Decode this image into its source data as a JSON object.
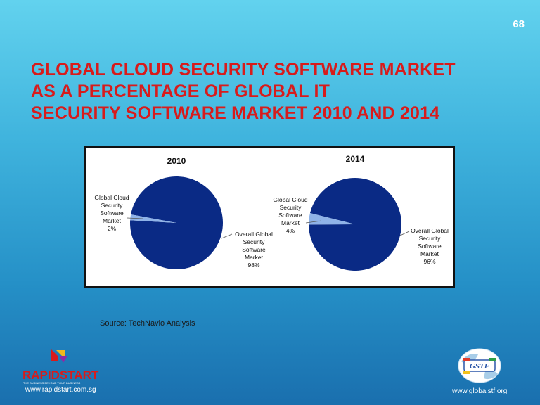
{
  "slide_number": "68",
  "title_lines": [
    "GLOBAL CLOUD SECURITY SOFTWARE MARKET",
    "AS A PERCENTAGE OF GLOBAL IT",
    "SECURITY SOFTWARE MARKET 2010 AND 2014"
  ],
  "source": "Source: TechNavio Analysis",
  "chart_data": [
    {
      "type": "pie",
      "title": "2010",
      "slices": [
        {
          "label_lines": [
            "Global Cloud",
            "Security",
            "Software",
            "Market",
            "2%"
          ],
          "value": 2,
          "color": "#8fb3e8"
        },
        {
          "label_lines": [
            "Overall Global",
            "Security",
            "Software",
            "Market",
            "98%"
          ],
          "value": 98,
          "color": "#0a2a85"
        }
      ]
    },
    {
      "type": "pie",
      "title": "2014",
      "slices": [
        {
          "label_lines": [
            "Global Cloud",
            "Security",
            "Software",
            "Market",
            "4%"
          ],
          "value": 4,
          "color": "#8fb3e8"
        },
        {
          "label_lines": [
            "Overall Global",
            "Security",
            "Software",
            "Market",
            "96%"
          ],
          "value": 96,
          "color": "#0a2a85"
        }
      ]
    }
  ],
  "logos": {
    "left_name": "RAPIDSTART",
    "left_tagline": "THE BUSINESS BEYOND YOUR BUSINESS",
    "left_url": "www.rapidstart.com.sg",
    "right_name": "GSTF",
    "right_url": "www.globalstf.org"
  },
  "colors": {
    "title": "#d81b1b",
    "pie_main": "#0a2a85",
    "pie_slice": "#8fb3e8",
    "logo_red": "#d81b1b"
  }
}
